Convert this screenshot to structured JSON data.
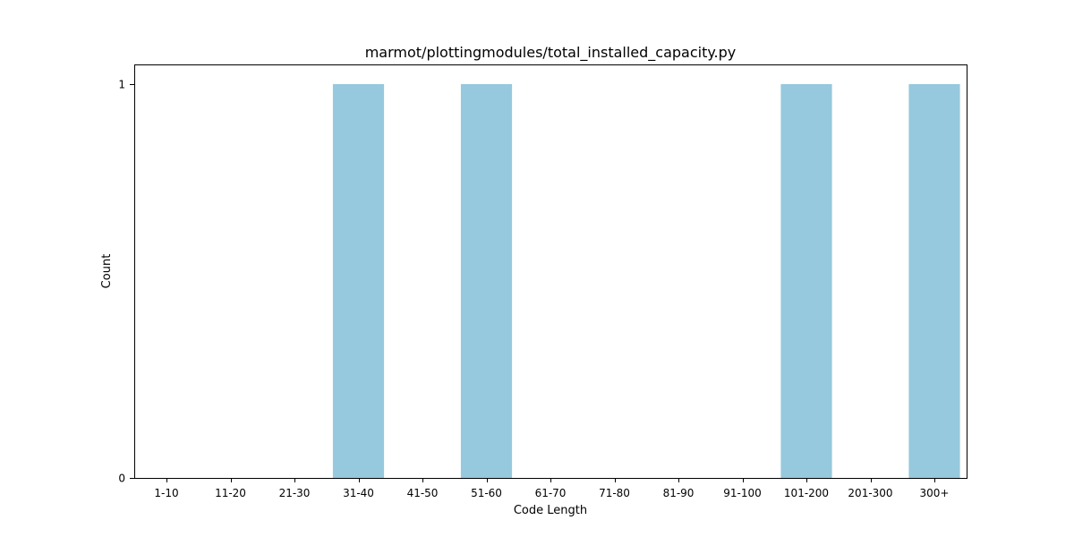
{
  "chart_data": {
    "type": "bar",
    "title": "marmot/plottingmodules/total_installed_capacity.py",
    "xlabel": "Code Length",
    "ylabel": "Count",
    "categories": [
      "1-10",
      "11-20",
      "21-30",
      "31-40",
      "41-50",
      "51-60",
      "61-70",
      "71-80",
      "81-90",
      "91-100",
      "101-200",
      "201-300",
      "300+"
    ],
    "values": [
      0,
      0,
      0,
      1,
      0,
      1,
      0,
      0,
      0,
      0,
      1,
      0,
      1
    ],
    "yticks": [
      0,
      1
    ],
    "ylim": [
      0,
      1.05
    ],
    "grid": false,
    "bar_color": "#96C9DD"
  }
}
